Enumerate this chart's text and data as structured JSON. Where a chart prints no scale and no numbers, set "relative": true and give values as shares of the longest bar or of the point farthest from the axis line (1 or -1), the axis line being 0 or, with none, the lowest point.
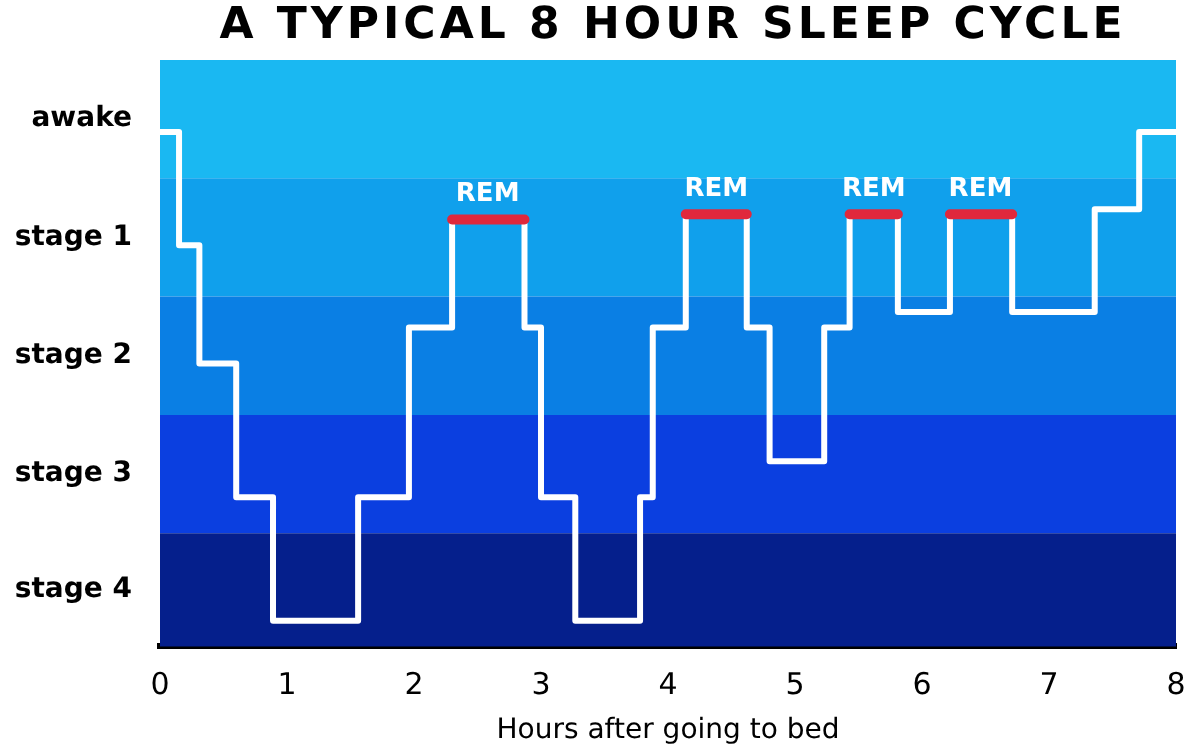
{
  "chart_data": {
    "type": "step",
    "title": "A TYPICAL 8 HOUR SLEEP CYCLE",
    "xlabel": "Hours after going to bed",
    "xlim": [
      0,
      8
    ],
    "xticks": [
      0,
      1,
      2,
      3,
      4,
      5,
      6,
      7,
      8
    ],
    "relative": true,
    "grid": false,
    "legend": false,
    "marker": "none",
    "line_style": "solid",
    "series": [
      {
        "color": "#ffffff",
        "x": [
          0,
          0.15,
          0.31,
          0.6,
          0.89,
          1.56,
          1.96,
          2.3,
          2.87,
          3.0,
          3.27,
          3.78,
          3.88,
          4.14,
          4.62,
          4.8,
          5.23,
          5.43,
          5.81,
          6.22,
          6.71,
          7.36,
          7.71,
          8
        ],
        "values": [
          1,
          0.78,
          0.55,
          0.29,
          0.05,
          0.29,
          0.62,
          0.83,
          0.62,
          0.29,
          0.05,
          0.29,
          0.62,
          0.84,
          0.62,
          0.36,
          0.62,
          0.84,
          0.65,
          0.84,
          0.65,
          0.85,
          1,
          1
        ]
      },
      {
        "type": "line",
        "color": "#e0283c",
        "x": [
          2.3,
          2.87,
          3.5,
          4.14,
          4.62,
          5.0,
          5.43,
          5.81,
          6.0,
          6.22,
          6.71
        ],
        "values": [
          0.83,
          0.83,
          null,
          0.84,
          0.84,
          null,
          0.84,
          0.84,
          null,
          0.84,
          0.84
        ]
      }
    ],
    "bands": [
      {
        "axis": "y",
        "from": 0.91,
        "to": 1.14,
        "color": "#1ab8f2",
        "label": "awake"
      },
      {
        "axis": "y",
        "from": 0.68,
        "to": 0.91,
        "color": "#10a0ec",
        "label": "stage 1"
      },
      {
        "axis": "y",
        "from": 0.45,
        "to": 0.68,
        "color": "#0a7fe4",
        "label": "stage 2"
      },
      {
        "axis": "y",
        "from": 0.22,
        "to": 0.45,
        "color": "#0b3fe0",
        "label": "stage 3"
      },
      {
        "axis": "y",
        "from": 0,
        "to": 0.22,
        "color": "#051f8c",
        "label": "stage 4"
      }
    ],
    "annotations": [
      {
        "text": "REM",
        "x": 2.58,
        "y": 0.83
      },
      {
        "text": "REM",
        "x": 4.38,
        "y": 0.84
      },
      {
        "text": "REM",
        "x": 5.62,
        "y": 0.84
      },
      {
        "text": "REM",
        "x": 6.46,
        "y": 0.84
      }
    ]
  }
}
